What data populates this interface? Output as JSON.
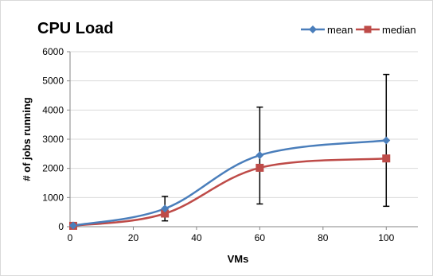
{
  "chart_data": {
    "type": "line",
    "title": "CPU Load",
    "xlabel": "VMs",
    "ylabel": "# of jobs running",
    "xlim": [
      0,
      110
    ],
    "ylim": [
      0,
      6000
    ],
    "x_ticks": [
      0,
      20,
      40,
      60,
      80,
      100
    ],
    "y_ticks": [
      0,
      1000,
      2000,
      3000,
      4000,
      5000,
      6000
    ],
    "grid": "horizontal",
    "smooth": true,
    "legend_position": "top-right",
    "series": [
      {
        "name": "mean",
        "color": "#4A7EBB",
        "marker": "diamond",
        "points": [
          {
            "x": 1,
            "y": 40
          },
          {
            "x": 30,
            "y": 620,
            "err_low": 200,
            "err_high": 1040
          },
          {
            "x": 60,
            "y": 2450,
            "err_low": 780,
            "err_high": 4100
          },
          {
            "x": 100,
            "y": 2960,
            "err_low": 700,
            "err_high": 5220
          }
        ]
      },
      {
        "name": "median",
        "color": "#BE4B48",
        "marker": "square",
        "points": [
          {
            "x": 1,
            "y": 30
          },
          {
            "x": 30,
            "y": 450
          },
          {
            "x": 60,
            "y": 2020
          },
          {
            "x": 100,
            "y": 2340
          }
        ]
      }
    ]
  }
}
